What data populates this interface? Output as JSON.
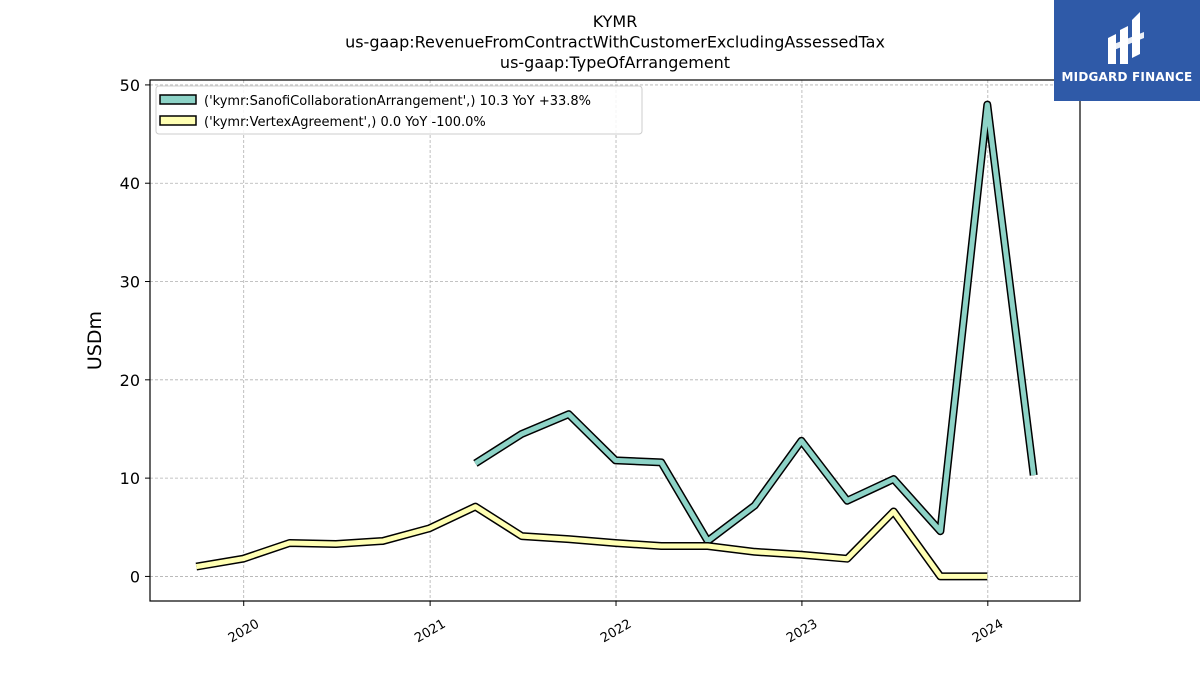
{
  "chart_data": {
    "type": "line",
    "title": [
      "KYMR",
      "us-gaap:RevenueFromContractWithCustomerExcludingAssessedTax",
      "us-gaap:TypeOfArrangement"
    ],
    "xlabel": "",
    "ylabel": "USDm",
    "x_ticks": [
      "2020",
      "2021",
      "2022",
      "2023",
      "2024"
    ],
    "y_ticks": [
      0,
      10,
      20,
      30,
      40,
      50
    ],
    "xlim": [
      "2019-07-01",
      "2024-06-30"
    ],
    "ylim": [
      -2.5,
      50.5
    ],
    "grid": true,
    "legend_position": "top-left",
    "series": [
      {
        "name": "('kymr:SanofiCollaborationArrangement',) 10.3 YoY +33.8%",
        "color": "#8dd3c7",
        "points": [
          [
            "2021-03-31",
            11.5
          ],
          [
            "2021-06-30",
            14.5
          ],
          [
            "2021-09-30",
            16.5
          ],
          [
            "2021-12-31",
            11.8
          ],
          [
            "2022-03-31",
            11.6
          ],
          [
            "2022-06-30",
            3.6
          ],
          [
            "2022-09-30",
            7.2
          ],
          [
            "2022-12-31",
            13.8
          ],
          [
            "2023-03-31",
            7.7
          ],
          [
            "2023-06-30",
            9.9
          ],
          [
            "2023-09-30",
            4.6
          ],
          [
            "2023-12-31",
            48.0
          ],
          [
            "2024-03-31",
            10.3
          ]
        ]
      },
      {
        "name": "('kymr:VertexAgreement',) 0.0 YoY -100.0%",
        "color": "#ffffb3",
        "points": [
          [
            "2019-09-30",
            1.0
          ],
          [
            "2019-12-31",
            1.8
          ],
          [
            "2020-03-31",
            3.4
          ],
          [
            "2020-06-30",
            3.3
          ],
          [
            "2020-09-30",
            3.6
          ],
          [
            "2020-12-31",
            4.9
          ],
          [
            "2021-03-31",
            7.1
          ],
          [
            "2021-06-30",
            4.1
          ],
          [
            "2021-09-30",
            3.8
          ],
          [
            "2021-12-31",
            3.4
          ],
          [
            "2022-03-31",
            3.1
          ],
          [
            "2022-06-30",
            3.1
          ],
          [
            "2022-09-30",
            2.5
          ],
          [
            "2022-12-31",
            2.2
          ],
          [
            "2023-03-31",
            1.8
          ],
          [
            "2023-06-30",
            6.6
          ],
          [
            "2023-09-30",
            0.0
          ],
          [
            "2023-12-31",
            0.0
          ]
        ]
      }
    ]
  },
  "logo": {
    "text": "MIDGARD FINANCE",
    "icon": "midgard-logo-icon"
  }
}
